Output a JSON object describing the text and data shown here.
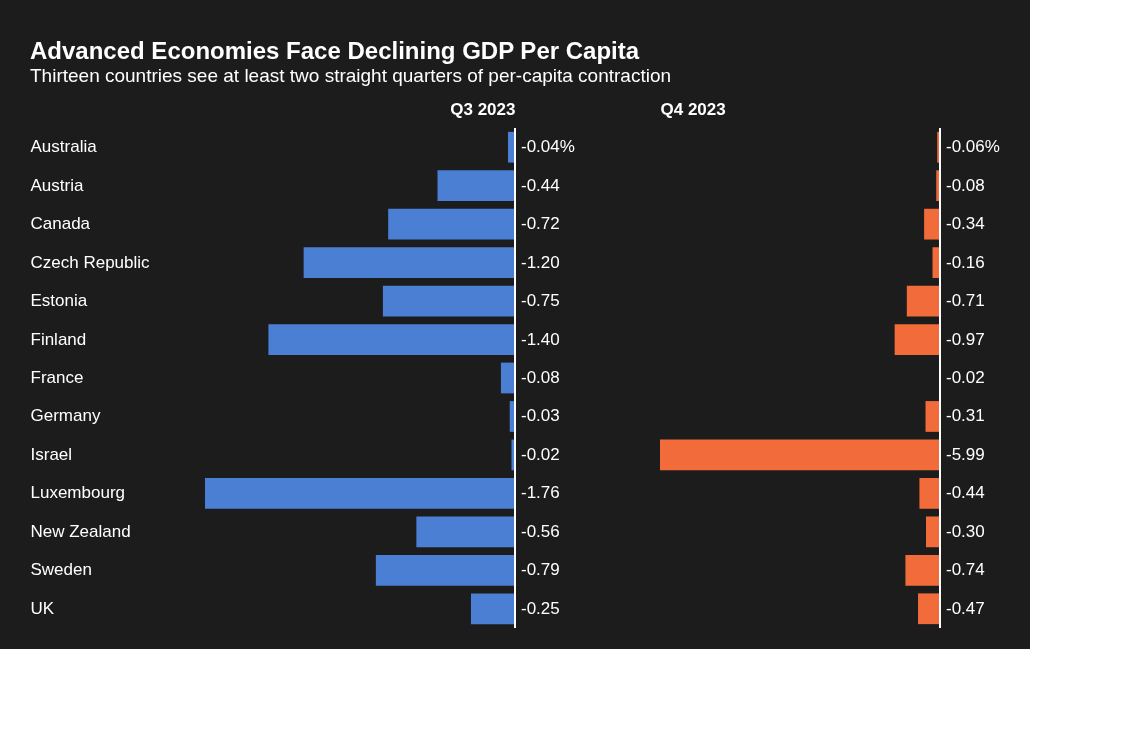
{
  "chart_data": [
    {
      "type": "bar",
      "orientation": "horizontal",
      "title": "Advanced Economies Face Declining GDP Per Capita",
      "subtitle": "Thirteen countries see at least two straight quarters of per-capita contraction",
      "xlabel": "Q3 2023",
      "tick_labels": "y",
      "categories": [
        "Australia",
        "Austria",
        "Canada",
        "Czech Republic",
        "Estonia",
        "Finland",
        "France",
        "Germany",
        "Israel",
        "Luxembourg",
        "New Zealand",
        "Sweden",
        "UK"
      ],
      "values": [
        -0.04,
        -0.44,
        -0.72,
        -1.2,
        -0.75,
        -1.4,
        -0.08,
        -0.03,
        -0.02,
        -1.76,
        -0.56,
        -0.79,
        -0.25
      ],
      "value_labels": [
        "-0.04%",
        "-0.44",
        "-0.72",
        "-1.20",
        "-0.75",
        "-1.40",
        "-0.08",
        "-0.03",
        "-0.02",
        "-1.76",
        "-0.56",
        "-0.79",
        "-0.25"
      ],
      "color": "#4a7fd4"
    },
    {
      "type": "bar",
      "orientation": "horizontal",
      "xlabel": "Q4 2023",
      "tick_labels": false,
      "values": [
        -0.06,
        -0.08,
        -0.34,
        -0.16,
        -0.71,
        -0.97,
        -0.02,
        -0.31,
        -5.99,
        -0.44,
        -0.3,
        -0.74,
        -0.47
      ],
      "value_labels": [
        "-0.06%",
        "-0.08",
        "-0.34",
        "-0.16",
        "-0.71",
        "-0.97",
        "-0.02",
        "-0.31",
        "-5.99",
        "-0.44",
        "-0.30",
        "-0.74",
        "-0.47"
      ],
      "color": "#f26b3a"
    }
  ]
}
